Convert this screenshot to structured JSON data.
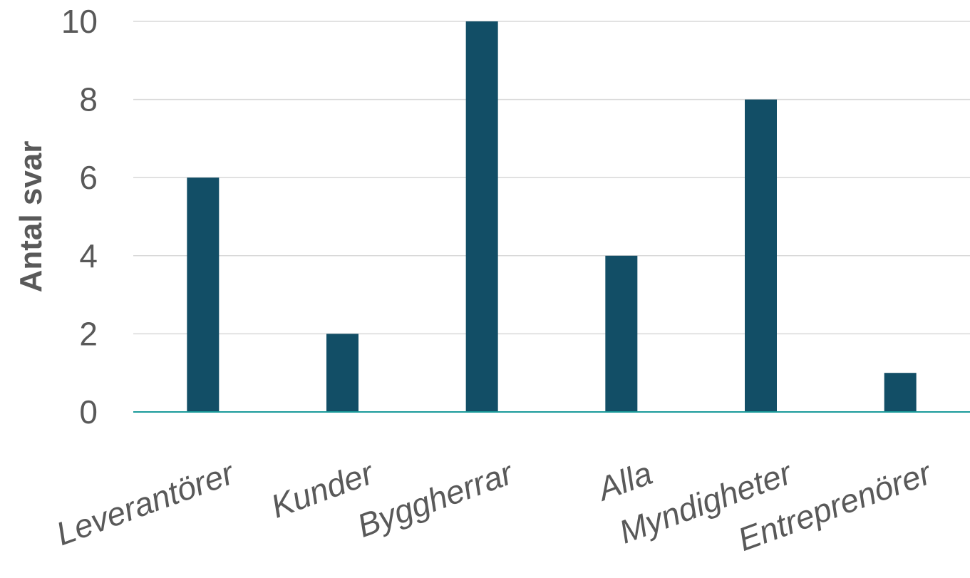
{
  "chart_data": {
    "type": "bar",
    "categories": [
      "Leverantörer",
      "Kunder",
      "Byggherrar",
      "Alla",
      "Myndigheter",
      "Entreprenörer"
    ],
    "values": [
      6,
      2,
      10,
      4,
      8,
      1
    ],
    "title": "",
    "xlabel": "",
    "ylabel": "Antal svar",
    "ylim": [
      0,
      10
    ],
    "yticks": [
      0,
      2,
      4,
      6,
      8,
      10
    ],
    "grid": true,
    "legend": "none",
    "colors": {
      "bar": "#124E66",
      "baseline": "#1A9A9A",
      "grid": "#D9D9D9",
      "text": "#595959"
    }
  }
}
